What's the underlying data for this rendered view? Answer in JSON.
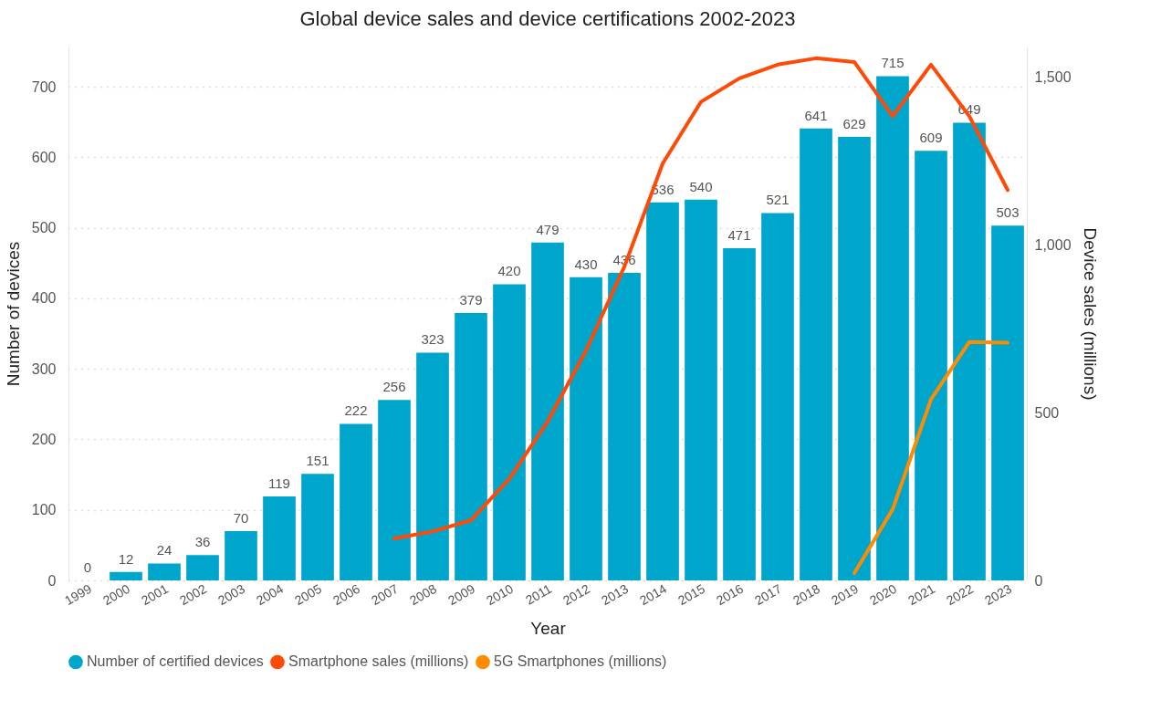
{
  "chart_data": {
    "type": "bar",
    "title": "Global device sales and device certifications 2002-2023",
    "xlabel": "Year",
    "ylabel": "Number of devices",
    "y2label": "Device sales (millions)",
    "categories": [
      "1999",
      "2000",
      "2001",
      "2002",
      "2003",
      "2004",
      "2005",
      "2006",
      "2007",
      "2008",
      "2009",
      "2010",
      "2011",
      "2012",
      "2013",
      "2014",
      "2015",
      "2016",
      "2017",
      "2018",
      "2019",
      "2020",
      "2021",
      "2022",
      "2023"
    ],
    "series": [
      {
        "name": "Number of certified devices",
        "color": "#00a5cc",
        "values": [
          0,
          12,
          24,
          36,
          70,
          119,
          151,
          222,
          256,
          323,
          379,
          420,
          479,
          430,
          436,
          536,
          540,
          471,
          521,
          641,
          629,
          715,
          609,
          649,
          503
        ],
        "value_labels": [
          "0",
          "12",
          "24",
          "36",
          "70",
          "119",
          "151",
          "222",
          "256",
          "323",
          "379",
          "420",
          "479",
          "430",
          "436",
          "536",
          "540",
          "471",
          "521",
          "641",
          "629",
          "715",
          "609",
          "649",
          "503"
        ]
      },
      {
        "name": "Smartphone sales (millions)",
        "type": "line",
        "axis": "y2",
        "color": "#fe4a06",
        "values": [
          null,
          null,
          null,
          null,
          null,
          null,
          null,
          null,
          125,
          146,
          179,
          303,
          474,
          685,
          935,
          1243,
          1427,
          1497,
          1538,
          1557,
          1546,
          1384,
          1538,
          1384,
          1164
        ]
      },
      {
        "name": "5G Smartphones (millions)",
        "type": "line",
        "axis": "y2",
        "color": "#ff8c00",
        "values": [
          null,
          null,
          null,
          null,
          null,
          null,
          null,
          null,
          null,
          null,
          null,
          null,
          null,
          null,
          null,
          null,
          null,
          null,
          null,
          null,
          22,
          212,
          540,
          711,
          709
        ]
      }
    ],
    "ylim": [
      0,
      757
    ],
    "yticks": [
      0,
      100,
      200,
      300,
      400,
      500,
      600,
      700
    ],
    "y2lim": [
      0,
      1592
    ],
    "y2ticks": [
      0,
      {
        "value": 500,
        "label": "500"
      },
      {
        "value": 1000,
        "label": "1,000"
      },
      {
        "value": 1500,
        "label": "1,500"
      }
    ],
    "grid": "y",
    "legend": "bottom",
    "line_style": "solid"
  }
}
